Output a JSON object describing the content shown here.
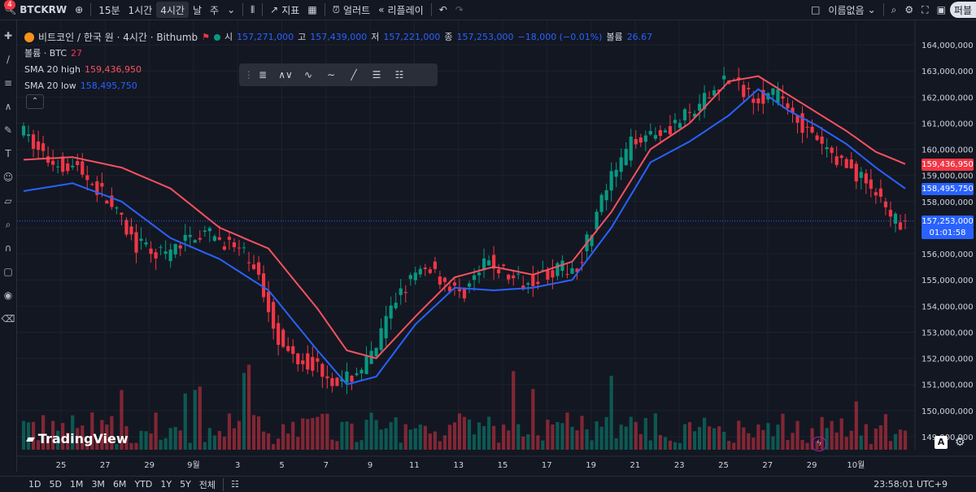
{
  "topbar": {
    "symbol": "BTCKRW",
    "intervals": [
      "15분",
      "1시간",
      "4시간",
      "날"
    ],
    "active_interval": "4시간",
    "weekday": "주",
    "indicators_label": "지표",
    "alert_label": "얼러트",
    "replay_label": "리플레이",
    "unnamed_label": "이름없음",
    "notification_badge": "4",
    "publish_label": "퍼블"
  },
  "legend": {
    "title": "비트코인 / 한국 원 · 4시간 · Bithumb",
    "o_label": "시",
    "o_val": "157,271,000",
    "h_label": "고",
    "h_val": "157,439,000",
    "l_label": "저",
    "l_val": "157,221,000",
    "c_label": "종",
    "c_val": "157,253,000",
    "change": "−18,000 (−0.01%)",
    "vol_label": "볼륨",
    "vol_val": "26.67",
    "volume_line_label": "볼륨 · BTC",
    "volume_line_val": "27",
    "sma_high_label": "SMA 20 high",
    "sma_high_val": "159,436,950",
    "sma_low_label": "SMA 20 low",
    "sma_low_val": "158,495,750"
  },
  "drawing_tools": [
    "lines-icon",
    "pattern-icon",
    "elliott-15-icon",
    "elliott-ac-icon",
    "trendline-icon",
    "fib-icon",
    "grid-icon"
  ],
  "watermark": "TradingView",
  "price_labels": {
    "sma_high": "159,436,950",
    "sma_low": "158,495,750",
    "last": "157,253,000",
    "countdown": "01:01:58"
  },
  "colors": {
    "up": "#089981",
    "down": "#f23645",
    "sma_high": "#f7525f",
    "sma_low": "#2962ff",
    "background": "#131722"
  },
  "bottombar": {
    "ranges": [
      "1D",
      "5D",
      "1M",
      "3M",
      "6M",
      "YTD",
      "1Y",
      "5Y",
      "전체"
    ],
    "clock": "23:58:01 UTC+9"
  },
  "chart_data": {
    "type": "candlestick",
    "symbol": "BTCKRW",
    "interval": "4H",
    "ylim": [
      148500000,
      164500000
    ],
    "y_ticks": [
      149000000,
      150000000,
      151000000,
      152000000,
      153000000,
      154000000,
      155000000,
      156000000,
      157000000,
      158000000,
      159000000,
      160000000,
      161000000,
      162000000,
      163000000,
      164000000
    ],
    "x_ticks": [
      "25",
      "27",
      "29",
      "9월",
      "3",
      "5",
      "7",
      "9",
      "11",
      "13",
      "15",
      "17",
      "19",
      "21",
      "23",
      "25",
      "27",
      "29",
      "10월"
    ],
    "price_path": [
      [
        0,
        160800000
      ],
      [
        6,
        159600000
      ],
      [
        12,
        159300000
      ],
      [
        18,
        158100000
      ],
      [
        24,
        156300000
      ],
      [
        30,
        155900000
      ],
      [
        36,
        156800000
      ],
      [
        42,
        156500000
      ],
      [
        48,
        155600000
      ],
      [
        54,
        152300000
      ],
      [
        60,
        151800000
      ],
      [
        66,
        151000000
      ],
      [
        72,
        152000000
      ],
      [
        78,
        154700000
      ],
      [
        84,
        155500000
      ],
      [
        90,
        154400000
      ],
      [
        96,
        155700000
      ],
      [
        102,
        154900000
      ],
      [
        108,
        155300000
      ],
      [
        114,
        155500000
      ],
      [
        120,
        158500000
      ],
      [
        126,
        160500000
      ],
      [
        132,
        160800000
      ],
      [
        138,
        161400000
      ],
      [
        144,
        162700000
      ],
      [
        150,
        162100000
      ],
      [
        156,
        162000000
      ],
      [
        162,
        160400000
      ],
      [
        168,
        159500000
      ],
      [
        174,
        158600000
      ],
      [
        178,
        157200000
      ],
      [
        180,
        157253000
      ]
    ],
    "sma20_high": [
      [
        0,
        159600000
      ],
      [
        10,
        159700000
      ],
      [
        20,
        159300000
      ],
      [
        30,
        158500000
      ],
      [
        40,
        157000000
      ],
      [
        50,
        156200000
      ],
      [
        60,
        153900000
      ],
      [
        66,
        152300000
      ],
      [
        72,
        152000000
      ],
      [
        80,
        153600000
      ],
      [
        88,
        155100000
      ],
      [
        96,
        155500000
      ],
      [
        104,
        155200000
      ],
      [
        112,
        155700000
      ],
      [
        120,
        157600000
      ],
      [
        128,
        160000000
      ],
      [
        136,
        161000000
      ],
      [
        144,
        162600000
      ],
      [
        150,
        162800000
      ],
      [
        156,
        162100000
      ],
      [
        162,
        161400000
      ],
      [
        168,
        160700000
      ],
      [
        174,
        159900000
      ],
      [
        180,
        159436950
      ]
    ],
    "sma20_low": [
      [
        0,
        158400000
      ],
      [
        10,
        158700000
      ],
      [
        20,
        158000000
      ],
      [
        30,
        156600000
      ],
      [
        40,
        155800000
      ],
      [
        50,
        154600000
      ],
      [
        60,
        152300000
      ],
      [
        66,
        151000000
      ],
      [
        72,
        151300000
      ],
      [
        80,
        153300000
      ],
      [
        88,
        154700000
      ],
      [
        96,
        154600000
      ],
      [
        104,
        154700000
      ],
      [
        112,
        155000000
      ],
      [
        120,
        157000000
      ],
      [
        128,
        159500000
      ],
      [
        136,
        160300000
      ],
      [
        144,
        161300000
      ],
      [
        150,
        162300000
      ],
      [
        156,
        161500000
      ],
      [
        162,
        160900000
      ],
      [
        168,
        160200000
      ],
      [
        174,
        159300000
      ],
      [
        180,
        158495750
      ]
    ],
    "volume_scale_max_btc": 150,
    "last_close": 157253000,
    "last_volume_btc": 27
  }
}
